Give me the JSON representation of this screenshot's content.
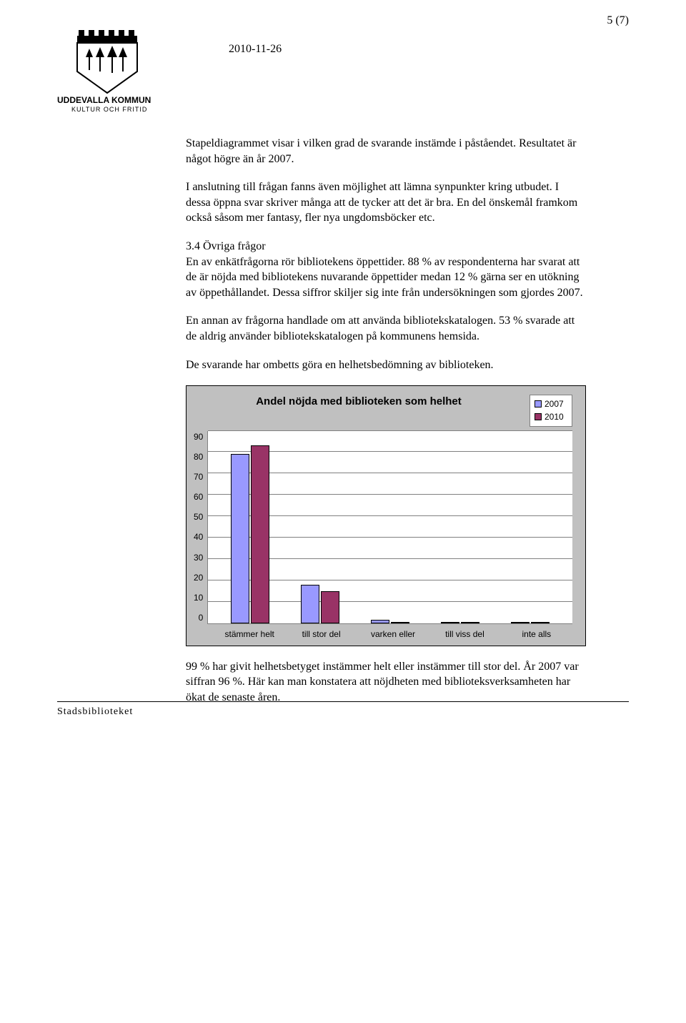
{
  "page_number": "5 (7)",
  "date": "2010-11-26",
  "logo": {
    "org": "UDDEVALLA KOMMUN",
    "dept": "KULTUR OCH FRITID"
  },
  "paragraphs": {
    "p1": "Stapeldiagrammet visar i vilken grad de svarande instämde i påståendet. Resultatet är något högre än år 2007.",
    "p2": "I anslutning till frågan fanns även möjlighet att lämna synpunkter kring utbudet. I dessa öppna svar skriver många att de tycker att det är bra. En del önskemål framkom också såsom mer fantasy, fler nya ungdomsböcker etc.",
    "p3": "3.4 Övriga frågor\nEn av enkätfrågorna rör bibliotekens öppettider. 88 % av respondenterna har svarat att de är nöjda med bibliotekens nuvarande öppettider medan 12 % gärna ser en utökning av öppethållandet. Dessa siffror skiljer sig inte från undersökningen som gjordes 2007.",
    "p4": "En annan av frågorna handlade om att använda bibliotekskatalogen. 53 % svarade att de aldrig använder bibliotekskatalogen på kommunens hemsida.",
    "p5": "De svarande har ombetts göra en helhetsbedömning av biblioteken.",
    "p6": "99 % har givit helhetsbetyget instämmer helt eller instämmer till stor del. År 2007 var siffran 96 %. Här kan man konstatera att nöjdheten med biblioteksverksamheten har ökat de senaste åren."
  },
  "chart": {
    "type": "bar",
    "title": "Andel nöjda med biblioteken som helhet",
    "background_color": "#c0c0c0",
    "plot_background": "#ffffff",
    "grid_color": "#808080",
    "categories": [
      "stämmer helt",
      "till stor del",
      "varken eller",
      "till viss del",
      "inte alls"
    ],
    "series": [
      {
        "name": "2007",
        "color": "#9999ff",
        "values": [
          79,
          18,
          1.5,
          0.5,
          0.5
        ]
      },
      {
        "name": "2010",
        "color": "#993366",
        "values": [
          83,
          15,
          0.5,
          0.5,
          0.5
        ]
      }
    ],
    "ylim": [
      0,
      90
    ],
    "ytick_step": 10,
    "yticks": [
      "90",
      "80",
      "70",
      "60",
      "50",
      "40",
      "30",
      "20",
      "10",
      "0"
    ],
    "bar_border": "#000000",
    "legend_labels": [
      "2007",
      "2010"
    ],
    "font_family": "Arial",
    "title_fontsize": 15,
    "axis_fontsize": 12
  },
  "footer": "Stadsbiblioteket"
}
